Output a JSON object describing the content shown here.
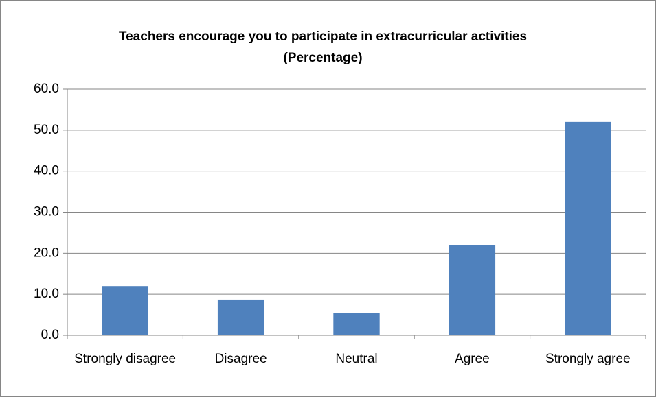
{
  "chart_data": {
    "type": "bar",
    "title": "Teachers encourage you to participate in extracurricular activities",
    "subtitle": "(Percentage)",
    "categories": [
      "Strongly disagree",
      "Disagree",
      "Neutral",
      "Agree",
      "Strongly agree"
    ],
    "values": [
      12.0,
      8.7,
      5.4,
      22.0,
      52.0
    ],
    "color": "#4f81bd",
    "ylim": [
      0,
      60
    ],
    "yticks": [
      {
        "value": 0,
        "label": "0.0"
      },
      {
        "value": 10,
        "label": "10.0"
      },
      {
        "value": 20,
        "label": "20.0"
      },
      {
        "value": 30,
        "label": "30.0"
      },
      {
        "value": 40,
        "label": "40.0"
      },
      {
        "value": 50,
        "label": "50.0"
      },
      {
        "value": 60,
        "label": "60.0"
      }
    ],
    "grid": true
  }
}
